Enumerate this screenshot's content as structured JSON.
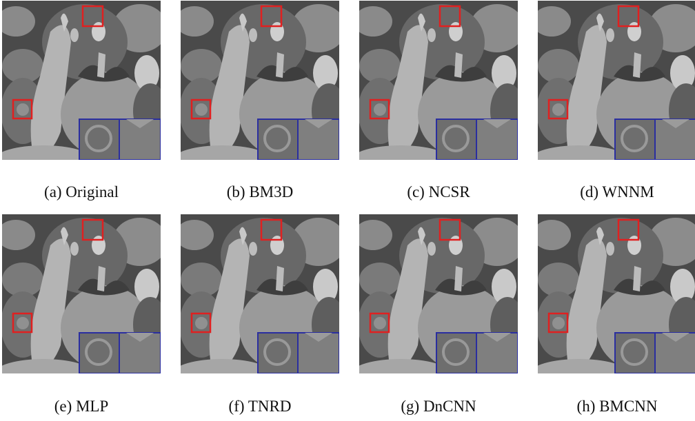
{
  "figure": {
    "panels": [
      {
        "caption": "(a) Original"
      },
      {
        "caption": "(b) BM3D"
      },
      {
        "caption": "(c) NCSR"
      },
      {
        "caption": "(d) WNNM"
      },
      {
        "caption": "(e) MLP"
      },
      {
        "caption": "(f) TNRD"
      },
      {
        "caption": "(g) DnCNN"
      },
      {
        "caption": "(h) BMCNN"
      }
    ]
  }
}
